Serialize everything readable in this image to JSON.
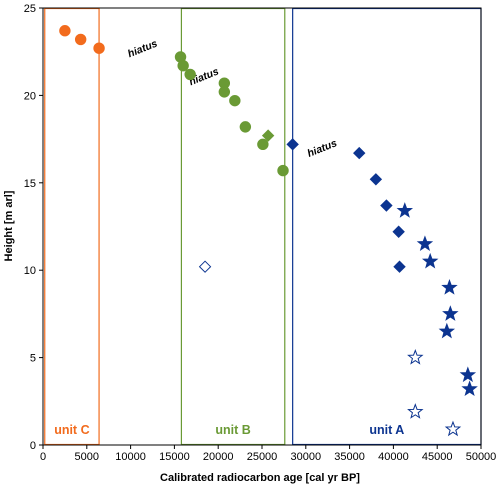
{
  "chart_data": {
    "type": "scatter",
    "title": "",
    "xlabel": "Calibrated radiocarbon age [cal yr BP]",
    "ylabel": "Height [m arl]",
    "xlim": [
      0,
      50000
    ],
    "ylim": [
      0,
      25
    ],
    "x_ticks": [
      "0",
      "5000",
      "10000",
      "15000",
      "20000",
      "25000",
      "30000",
      "35000",
      "40000",
      "45000",
      "50000"
    ],
    "y_ticks": [
      "0",
      "5",
      "10",
      "15",
      "20",
      "25"
    ],
    "grid": false,
    "colors": {
      "unit_c": "#f26b1d",
      "unit_b": "#6a9a35",
      "unit_a": "#0c3490"
    },
    "units": [
      {
        "label": "unit C",
        "x_range": [
          200,
          6400
        ],
        "color": "#f26b1d"
      },
      {
        "label": "unit B",
        "x_range": [
          15800,
          27600
        ],
        "color": "#6a9a35"
      },
      {
        "label": "unit A",
        "x_range": [
          28500,
          50000
        ],
        "color": "#0c3490"
      }
    ],
    "series": [
      {
        "unit": "unit C",
        "marker": "circle",
        "fill": "filled",
        "color": "#f26b1d",
        "points": [
          [
            2500,
            23.7
          ],
          [
            4300,
            23.2
          ],
          [
            6400,
            22.7
          ]
        ]
      },
      {
        "unit": "unit B",
        "marker": "circle",
        "fill": "filled",
        "color": "#6a9a35",
        "points": [
          [
            15700,
            22.2
          ],
          [
            16000,
            21.7
          ],
          [
            16800,
            21.2
          ],
          [
            20700,
            20.7
          ],
          [
            20700,
            20.2
          ],
          [
            21900,
            19.7
          ],
          [
            23100,
            18.2
          ],
          [
            25100,
            17.2
          ],
          [
            27400,
            15.7
          ]
        ]
      },
      {
        "unit": "unit B",
        "marker": "diamond",
        "fill": "filled",
        "color": "#6a9a35",
        "points": [
          [
            25700,
            17.7
          ]
        ]
      },
      {
        "unit": "unit A",
        "marker": "diamond",
        "fill": "filled",
        "color": "#0c3490",
        "points": [
          [
            28500,
            17.2
          ],
          [
            36100,
            16.7
          ],
          [
            38000,
            15.2
          ],
          [
            39200,
            13.7
          ],
          [
            40600,
            12.2
          ],
          [
            40700,
            10.2
          ]
        ]
      },
      {
        "unit": "unit A",
        "marker": "diamond",
        "fill": "open",
        "color": "#0c3490",
        "points": [
          [
            18500,
            10.2
          ]
        ]
      },
      {
        "unit": "unit A",
        "marker": "star",
        "fill": "filled",
        "color": "#0c3490",
        "points": [
          [
            41300,
            13.4
          ],
          [
            43600,
            11.5
          ],
          [
            44200,
            10.5
          ],
          [
            46400,
            9.0
          ],
          [
            46500,
            7.5
          ],
          [
            46100,
            6.5
          ],
          [
            48500,
            4.0
          ],
          [
            48700,
            3.2
          ]
        ]
      },
      {
        "unit": "unit A",
        "marker": "star",
        "fill": "open",
        "color": "#0c3490",
        "points": [
          [
            42500,
            5.0
          ],
          [
            42500,
            1.9
          ],
          [
            46800,
            0.9
          ]
        ]
      }
    ],
    "annotations": [
      {
        "text": "hiatus",
        "x": 11500,
        "y": 22.5,
        "angle": -22
      },
      {
        "text": "hiatus",
        "x": 18500,
        "y": 20.9,
        "angle": -22
      },
      {
        "text": "hiatus",
        "x": 32000,
        "y": 16.8,
        "angle": -22
      }
    ]
  }
}
